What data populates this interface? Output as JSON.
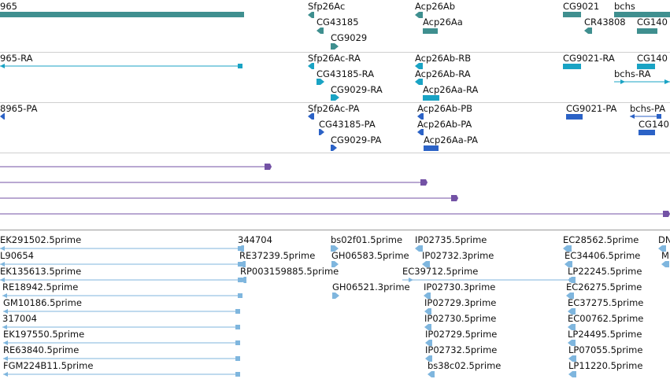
{
  "colors": {
    "gene": "#3f8f8f",
    "transcript": "#19a3c4",
    "protein": "#2b62c6",
    "alignment": "#7352a5",
    "est": "#7fb6de"
  },
  "tracks": [
    {
      "id": "genes",
      "color_key": "gene",
      "features": [
        {
          "label": "965",
          "icon": "gene-bar"
        },
        {
          "label": "Sfp26Ac",
          "icon": "gene-arrow"
        },
        {
          "label": "CG43185",
          "icon": "gene-arrow"
        },
        {
          "label": "CG9029",
          "icon": "gene-arrow"
        },
        {
          "label": "Acp26Ab",
          "icon": "gene-arrow"
        },
        {
          "label": "Acp26Aa",
          "icon": "gene-bar"
        },
        {
          "label": "CG9021",
          "icon": "gene-bar"
        },
        {
          "label": "bchs",
          "icon": "gene-bar"
        },
        {
          "label": "CR43808",
          "icon": "gene-arrow"
        },
        {
          "label": "CG140",
          "icon": "gene-bar"
        }
      ]
    },
    {
      "id": "transcripts",
      "color_key": "transcript",
      "features": [
        {
          "label": "965-RA",
          "icon": "transcript-line"
        },
        {
          "label": "Sfp26Ac-RA",
          "icon": "transcript-arrow"
        },
        {
          "label": "CG43185-RA",
          "icon": "transcript-arrow"
        },
        {
          "label": "CG9029-RA",
          "icon": "transcript-arrow"
        },
        {
          "label": "Acp26Ab-RB",
          "icon": "transcript-arrow"
        },
        {
          "label": "Acp26Ab-RA",
          "icon": "transcript-arrow"
        },
        {
          "label": "Acp26Aa-RA",
          "icon": "transcript-bar"
        },
        {
          "label": "CG9021-RA",
          "icon": "transcript-bar"
        },
        {
          "label": "CG140",
          "icon": "transcript-bar"
        },
        {
          "label": "bchs-RA",
          "icon": "transcript-line"
        }
      ]
    },
    {
      "id": "proteins",
      "color_key": "protein",
      "features": [
        {
          "label": "8965-PA",
          "icon": "protein-arrow"
        },
        {
          "label": "Sfp26Ac-PA",
          "icon": "protein-arrow"
        },
        {
          "label": "CG43185-PA",
          "icon": "protein-arrow"
        },
        {
          "label": "CG9029-PA",
          "icon": "protein-arrow"
        },
        {
          "label": "Acp26Ab-PB",
          "icon": "protein-arrow"
        },
        {
          "label": "Acp26Ab-PA",
          "icon": "protein-arrow"
        },
        {
          "label": "Acp26Aa-PA",
          "icon": "protein-bar"
        },
        {
          "label": "CG9021-PA",
          "icon": "protein-bar"
        },
        {
          "label": "bchs-PA",
          "icon": "protein-line"
        },
        {
          "label": "CG140",
          "icon": "protein-bar"
        }
      ]
    },
    {
      "id": "alignments",
      "color_key": "alignment",
      "features": [
        {
          "label": "",
          "icon": "alignment-line"
        },
        {
          "label": "",
          "icon": "alignment-line"
        },
        {
          "label": "",
          "icon": "alignment-line"
        },
        {
          "label": "",
          "icon": "alignment-line"
        }
      ]
    },
    {
      "id": "ests",
      "color_key": "est",
      "features": [
        {
          "label": "EK291502.5prime",
          "icon": "est-line"
        },
        {
          "label": "L90654",
          "icon": "est-line"
        },
        {
          "label": "EK135613.5prime",
          "icon": "est-line"
        },
        {
          "label": "RE18942.5prime",
          "icon": "est-line"
        },
        {
          "label": "GM10186.5prime",
          "icon": "est-line"
        },
        {
          "label": "317004",
          "icon": "est-line"
        },
        {
          "label": "EK197550.5prime",
          "icon": "est-line"
        },
        {
          "label": "RE63840.5prime",
          "icon": "est-line"
        },
        {
          "label": "FGM224B11.5prime",
          "icon": "est-line"
        },
        {
          "label": "344704",
          "icon": "est-arrow"
        },
        {
          "label": "RE37239.5prime",
          "icon": "est-arrow"
        },
        {
          "label": "RP003159885.5prime",
          "icon": "est-arrow"
        },
        {
          "label": "bs02f01.5prime",
          "icon": "est-arrow"
        },
        {
          "label": "GH06583.5prime",
          "icon": "est-arrow"
        },
        {
          "label": "GH06521.3prime",
          "icon": "est-arrow"
        },
        {
          "label": "EC39712.5prime",
          "icon": "est-line"
        },
        {
          "label": "IP02735.5prime",
          "icon": "est-arrow"
        },
        {
          "label": "IP02732.3prime",
          "icon": "est-arrow"
        },
        {
          "label": "IP02730.3prime",
          "icon": "est-arrow"
        },
        {
          "label": "IP02729.3prime",
          "icon": "est-arrow"
        },
        {
          "label": "IP02730.5prime",
          "icon": "est-arrow"
        },
        {
          "label": "IP02729.5prime",
          "icon": "est-arrow"
        },
        {
          "label": "IP02732.5prime",
          "icon": "est-arrow"
        },
        {
          "label": "bs38c02.5prime",
          "icon": "est-arrow"
        },
        {
          "label": "EC28562.5prime",
          "icon": "est-arrow"
        },
        {
          "label": "EC34406.5prime",
          "icon": "est-arrow"
        },
        {
          "label": "LP22245.5prime",
          "icon": "est-arrow"
        },
        {
          "label": "EC26275.5prime",
          "icon": "est-arrow"
        },
        {
          "label": "EC37275.5prime",
          "icon": "est-arrow"
        },
        {
          "label": "EC00762.5prime",
          "icon": "est-arrow"
        },
        {
          "label": "LP24495.5prime",
          "icon": "est-arrow"
        },
        {
          "label": "LP07055.5prime",
          "icon": "est-arrow"
        },
        {
          "label": "LP11220.5prime",
          "icon": "est-arrow"
        },
        {
          "label": "DN",
          "icon": "est-arrow"
        },
        {
          "label": "M",
          "icon": "est-arrow"
        }
      ]
    }
  ]
}
